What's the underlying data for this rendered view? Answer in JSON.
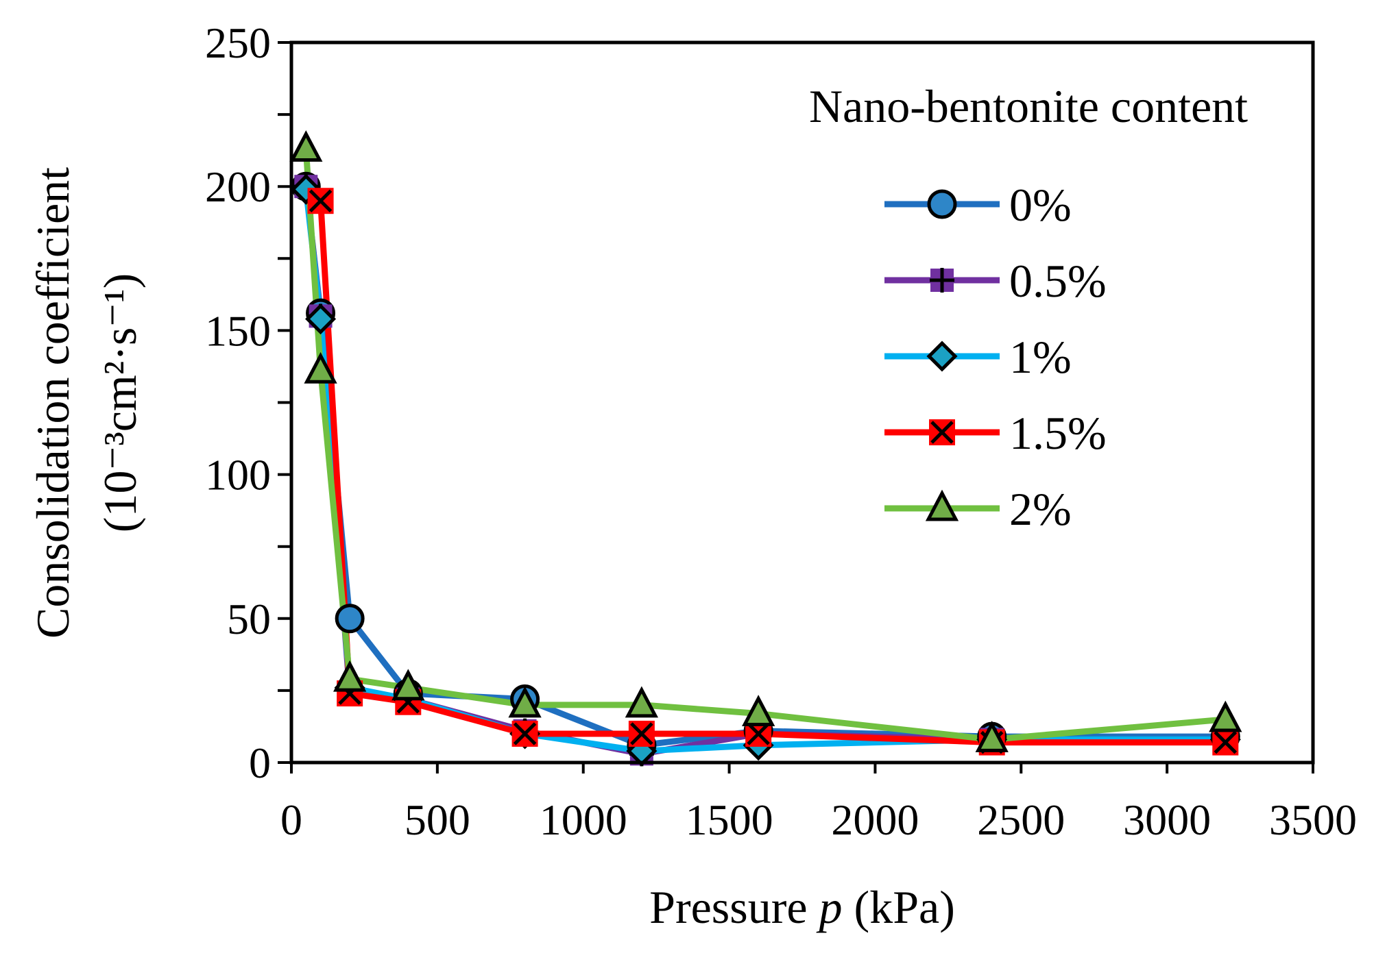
{
  "chart_data": {
    "type": "line",
    "title": "",
    "xlabel_prefix": "Pressure ",
    "xlabel_var": "p",
    "xlabel_suffix": " (kPa)",
    "ylabel_line1": "Consolidation coefficient",
    "ylabel_line2": "(10⁻³cm²·s⁻¹)",
    "xlim": [
      0,
      3500
    ],
    "ylim": [
      0,
      250
    ],
    "xticks": [
      0,
      500,
      1000,
      1500,
      2000,
      2500,
      3000,
      3500
    ],
    "yticks": [
      0,
      50,
      100,
      150,
      200,
      250
    ],
    "xtick_labels": [
      "0",
      "500",
      "1000",
      "1500",
      "2000",
      "2500",
      "3000",
      "3500"
    ],
    "ytick_labels": [
      "0",
      "50",
      "100",
      "150",
      "200",
      "250"
    ],
    "legend_title": "Nano-bentonite content",
    "legend_position": "top-right",
    "x": [
      50,
      100,
      200,
      400,
      800,
      1200,
      1600,
      2400,
      3200
    ],
    "series": [
      {
        "name": "0%",
        "color": "#1F6FC0",
        "marker": "circle",
        "marker_fill": "#2E86C8",
        "values": [
          200,
          156,
          50,
          24,
          22,
          6,
          11,
          9,
          9
        ]
      },
      {
        "name": "0.5%",
        "color": "#7030A0",
        "marker": "square-plus",
        "marker_fill": "#7030A0",
        "values": [
          200,
          155,
          24,
          22,
          11,
          3,
          10,
          8,
          7
        ]
      },
      {
        "name": "1%",
        "color": "#00B0F0",
        "marker": "diamond",
        "marker_fill": "#1BA1C4",
        "values": [
          199,
          154,
          26,
          22,
          10,
          4,
          6,
          8,
          8
        ]
      },
      {
        "name": "1.5%",
        "color": "#FF0000",
        "marker": "square-x",
        "marker_fill": "#FF0000",
        "values": [
          null,
          195,
          24,
          21,
          10,
          10,
          10,
          7,
          7
        ]
      },
      {
        "name": "2%",
        "color": "#70C040",
        "marker": "triangle",
        "marker_fill": "#70AD47",
        "values": [
          213,
          136,
          29,
          26,
          20,
          20,
          17,
          8,
          15
        ]
      }
    ]
  }
}
